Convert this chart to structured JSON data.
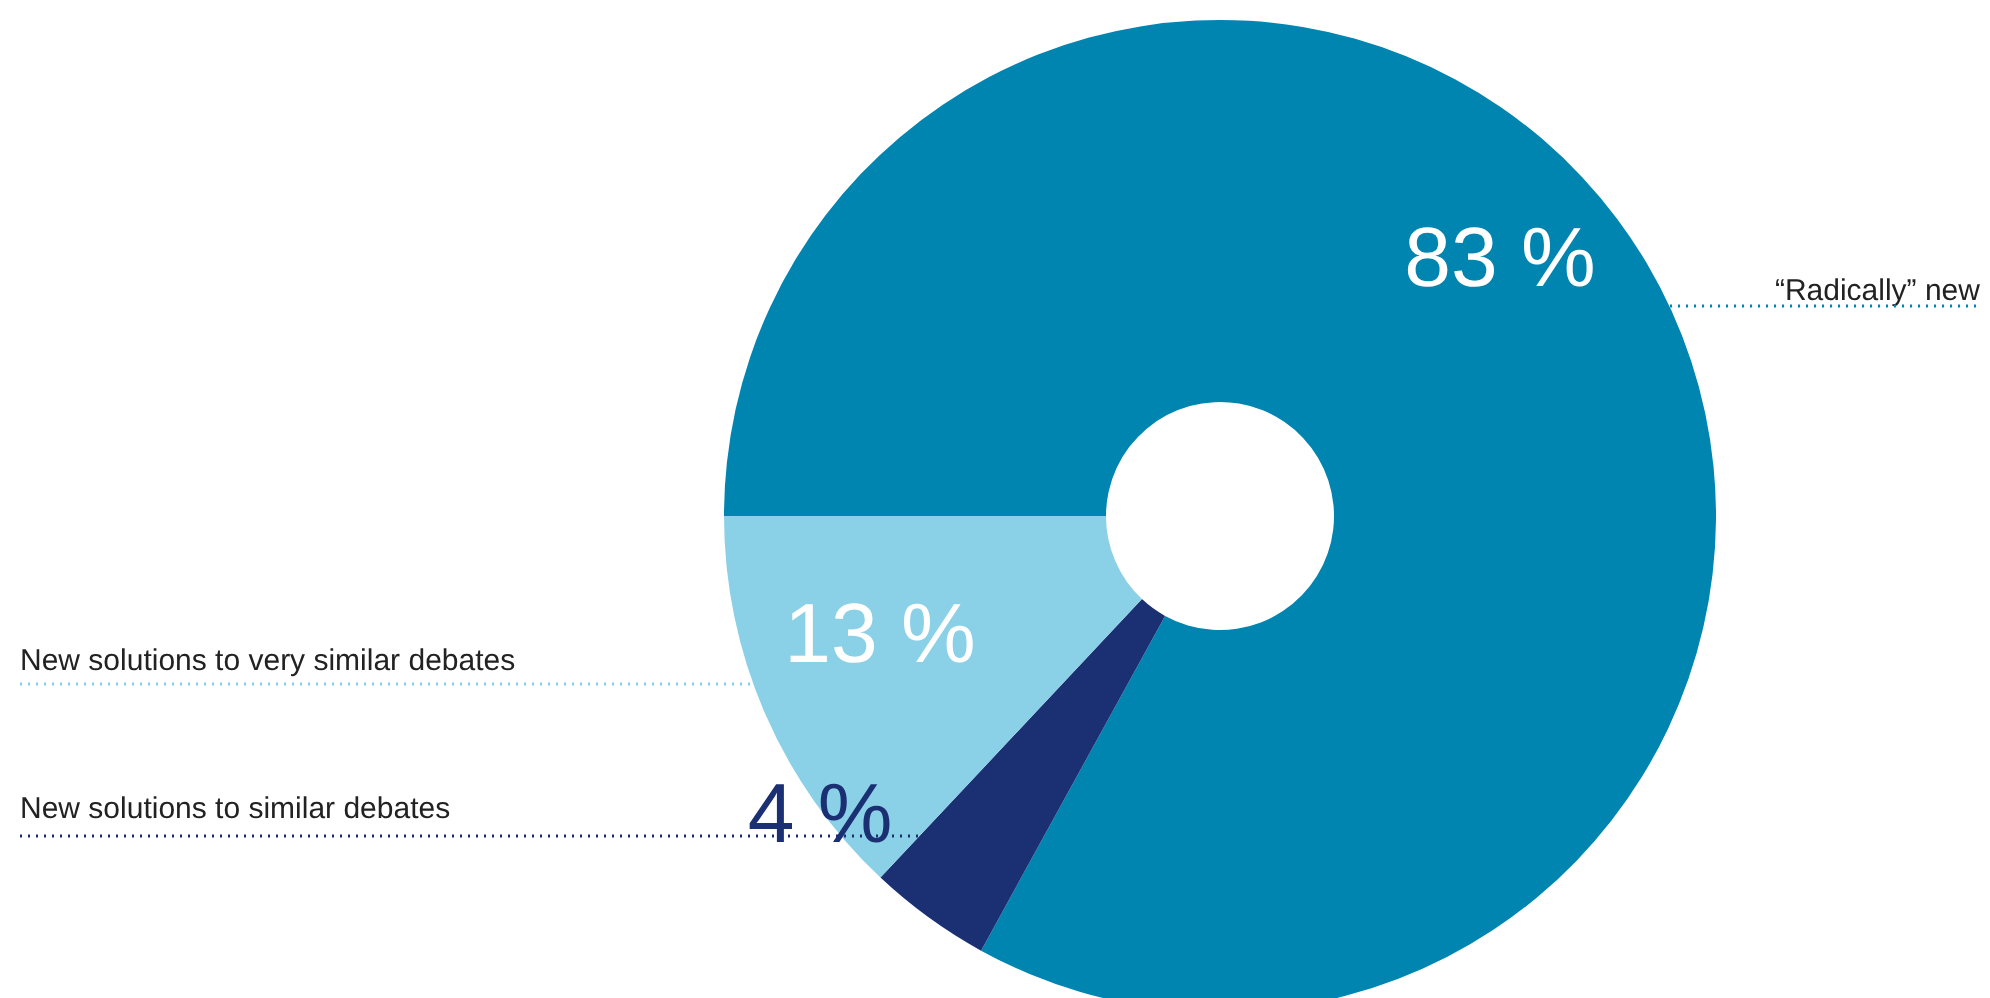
{
  "chart_data": {
    "type": "donut",
    "categories": [
      "“Radically” new",
      "New solutions to similar debates",
      "New solutions to very similar debates"
    ],
    "values": [
      83,
      4,
      13
    ],
    "colors": [
      "#0085b0",
      "#1b2f73",
      "#8ad0e6"
    ],
    "value_labels": [
      "83 %",
      "4 %",
      "13 %"
    ]
  }
}
